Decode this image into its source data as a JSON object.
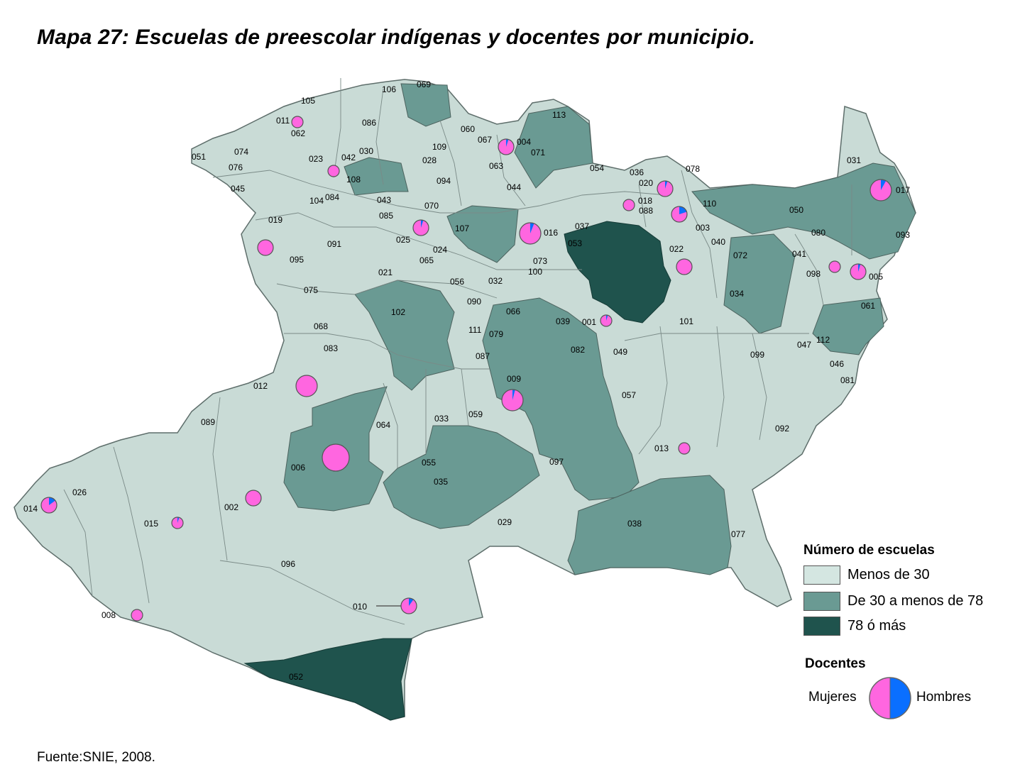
{
  "title": "Mapa 27: Escuelas de preescolar indígenas y docentes por municipio.",
  "source": "Fuente:SNIE, 2008.",
  "colors": {
    "low": "#d4e6e1",
    "mid": "#6a9a93",
    "high": "#1f534d",
    "background": "#c7d6d2",
    "border": "#5e6e6b",
    "mujeres": "#ff66e0",
    "hombres": "#0a6fff"
  },
  "legend": {
    "schools_title": "Número de escuelas",
    "classes": [
      {
        "label": "Menos de 30",
        "color": "#d4e6e1"
      },
      {
        "label": "De 30 a menos de 78",
        "color": "#6a9a93"
      },
      {
        "label": "78 ó más",
        "color": "#1f534d"
      }
    ],
    "teachers_title": "Docentes",
    "mujeres_label": "Mujeres",
    "hombres_label": "Hombres"
  },
  "municipios": [
    "001",
    "002",
    "003",
    "004",
    "005",
    "006",
    "008",
    "009",
    "010",
    "011",
    "012",
    "013",
    "014",
    "015",
    "016",
    "017",
    "018",
    "019",
    "020",
    "021",
    "022",
    "023",
    "024",
    "025",
    "026",
    "028",
    "029",
    "030",
    "031",
    "032",
    "033",
    "034",
    "035",
    "036",
    "037",
    "038",
    "039",
    "040",
    "041",
    "042",
    "043",
    "044",
    "045",
    "046",
    "047",
    "049",
    "050",
    "051",
    "052",
    "053",
    "054",
    "055",
    "056",
    "057",
    "059",
    "060",
    "061",
    "062",
    "063",
    "064",
    "065",
    "066",
    "067",
    "068",
    "069",
    "070",
    "071",
    "072",
    "073",
    "074",
    "075",
    "076",
    "077",
    "078",
    "079",
    "080",
    "081",
    "082",
    "083",
    "084",
    "085",
    "086",
    "087",
    "088",
    "089",
    "090",
    "091",
    "092",
    "093",
    "094",
    "095",
    "096",
    "097",
    "098",
    "099",
    "100",
    "101",
    "102",
    "104",
    "105",
    "106",
    "107",
    "108",
    "109",
    "110",
    "111",
    "112",
    "113"
  ],
  "pies": [
    {
      "id": "017",
      "size": 3,
      "hombres_share": 0.08
    },
    {
      "id": "016",
      "size": 3,
      "hombres_share": 0.06
    },
    {
      "id": "009",
      "size": 3,
      "hombres_share": 0.04
    },
    {
      "id": "006",
      "size": 4,
      "hombres_share": 0.0
    },
    {
      "id": "012",
      "size": 3,
      "hombres_share": 0.0
    },
    {
      "id": "020",
      "size": 2,
      "hombres_share": 0.05
    },
    {
      "id": "088",
      "size": 2,
      "hombres_share": 0.2
    },
    {
      "id": "022",
      "size": 2,
      "hombres_share": 0.0
    },
    {
      "id": "004",
      "size": 2,
      "hombres_share": 0.05
    },
    {
      "id": "019",
      "size": 2,
      "hombres_share": 0.0
    },
    {
      "id": "025",
      "size": 2,
      "hombres_share": 0.05
    },
    {
      "id": "014",
      "size": 2,
      "hombres_share": 0.15
    },
    {
      "id": "002",
      "size": 2,
      "hombres_share": 0.0
    },
    {
      "id": "015",
      "size": 1,
      "hombres_share": 0.05
    },
    {
      "id": "010",
      "size": 2,
      "hombres_share": 0.1
    },
    {
      "id": "008",
      "size": 1,
      "hombres_share": 0.0
    },
    {
      "id": "013",
      "size": 1,
      "hombres_share": 0.0
    },
    {
      "id": "001",
      "size": 1,
      "hombres_share": 0.05
    },
    {
      "id": "005",
      "size": 2,
      "hombres_share": 0.05
    },
    {
      "id": "018",
      "size": 1,
      "hombres_share": 0.0
    },
    {
      "id": "023",
      "size": 1,
      "hombres_share": 0.0
    },
    {
      "id": "011",
      "size": 1,
      "hombres_share": 0.0
    },
    {
      "id": "098",
      "size": 1,
      "hombres_share": 0.0
    }
  ]
}
